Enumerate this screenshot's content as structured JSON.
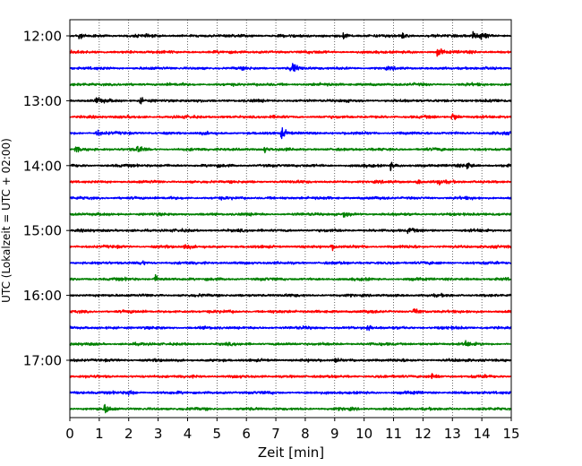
{
  "chart_data": {
    "type": "line",
    "title": "",
    "xlabel": "Zeit  [min]",
    "ylabel": "UTC (Lokalzeit = UTC + 02:00)",
    "xlim": [
      0,
      15
    ],
    "x_ticks": [
      0,
      1,
      2,
      3,
      4,
      5,
      6,
      7,
      8,
      9,
      10,
      11,
      12,
      13,
      14,
      15
    ],
    "grid": "vertical dotted lines at each minute",
    "y_tick_labels": [
      "12:00",
      "13:00",
      "14:00",
      "15:00",
      "16:00",
      "17:00"
    ],
    "colors": [
      "#000000",
      "#ff0000",
      "#0000ff",
      "#008000"
    ],
    "traces": [
      {
        "start": "12:00",
        "color": "#000000",
        "events": [
          {
            "t": 0.3,
            "amp": 0.3
          },
          {
            "t": 9.3,
            "amp": 0.35
          },
          {
            "t": 11.3,
            "amp": 0.3
          },
          {
            "t": 13.7,
            "amp": 0.3
          },
          {
            "t": 14.0,
            "amp": 0.45
          }
        ]
      },
      {
        "start": "12:15",
        "color": "#ff0000",
        "events": [
          {
            "t": 12.5,
            "amp": 0.55
          }
        ]
      },
      {
        "start": "12:30",
        "color": "#0000ff",
        "events": [
          {
            "t": 7.5,
            "amp": 0.35
          },
          {
            "t": 7.6,
            "amp": 0.35
          }
        ]
      },
      {
        "start": "12:45",
        "color": "#008000",
        "events": []
      },
      {
        "start": "13:00",
        "color": "#000000",
        "events": [
          {
            "t": 0.9,
            "amp": 0.35
          },
          {
            "t": 2.4,
            "amp": 0.3
          }
        ]
      },
      {
        "start": "13:15",
        "color": "#ff0000",
        "events": [
          {
            "t": 13.0,
            "amp": 0.55
          }
        ]
      },
      {
        "start": "13:30",
        "color": "#0000ff",
        "events": [
          {
            "t": 7.2,
            "amp": 0.55
          },
          {
            "t": 0.9,
            "amp": 0.3
          }
        ]
      },
      {
        "start": "13:45",
        "color": "#008000",
        "events": [
          {
            "t": 0.2,
            "amp": 0.35
          },
          {
            "t": 2.3,
            "amp": 0.35
          },
          {
            "t": 6.6,
            "amp": 0.3
          }
        ]
      },
      {
        "start": "14:00",
        "color": "#000000",
        "events": [
          {
            "t": 10.9,
            "amp": 0.35
          },
          {
            "t": 13.5,
            "amp": 0.45
          }
        ]
      },
      {
        "start": "14:15",
        "color": "#ff0000",
        "events": [
          {
            "t": 11.8,
            "amp": 0.3
          },
          {
            "t": 12.5,
            "amp": 0.3
          }
        ]
      },
      {
        "start": "14:30",
        "color": "#0000ff",
        "events": []
      },
      {
        "start": "14:45",
        "color": "#008000",
        "events": [
          {
            "t": 9.3,
            "amp": 0.3
          }
        ]
      },
      {
        "start": "15:00",
        "color": "#000000",
        "events": [
          {
            "t": 11.5,
            "amp": 0.3
          }
        ]
      },
      {
        "start": "15:15",
        "color": "#ff0000",
        "events": [
          {
            "t": 3.9,
            "amp": 0.3
          },
          {
            "t": 8.9,
            "amp": 0.3
          }
        ]
      },
      {
        "start": "15:30",
        "color": "#0000ff",
        "events": [
          {
            "t": 2.4,
            "amp": 0.25
          }
        ]
      },
      {
        "start": "15:45",
        "color": "#008000",
        "events": [
          {
            "t": 2.9,
            "amp": 0.35
          }
        ]
      },
      {
        "start": "16:00",
        "color": "#000000",
        "events": []
      },
      {
        "start": "16:15",
        "color": "#ff0000",
        "events": [
          {
            "t": 11.7,
            "amp": 0.3
          }
        ]
      },
      {
        "start": "16:30",
        "color": "#0000ff",
        "events": [
          {
            "t": 10.1,
            "amp": 0.3
          }
        ]
      },
      {
        "start": "16:45",
        "color": "#008000",
        "events": [
          {
            "t": 13.4,
            "amp": 0.3
          }
        ]
      },
      {
        "start": "17:00",
        "color": "#000000",
        "events": [
          {
            "t": 9.0,
            "amp": 0.3
          }
        ]
      },
      {
        "start": "17:15",
        "color": "#ff0000",
        "events": [
          {
            "t": 12.3,
            "amp": 0.35
          }
        ]
      },
      {
        "start": "17:30",
        "color": "#0000ff",
        "events": [
          {
            "t": 2.0,
            "amp": 0.3
          }
        ]
      },
      {
        "start": "17:45",
        "color": "#008000",
        "events": [
          {
            "t": 1.2,
            "amp": 0.45
          }
        ]
      }
    ]
  }
}
